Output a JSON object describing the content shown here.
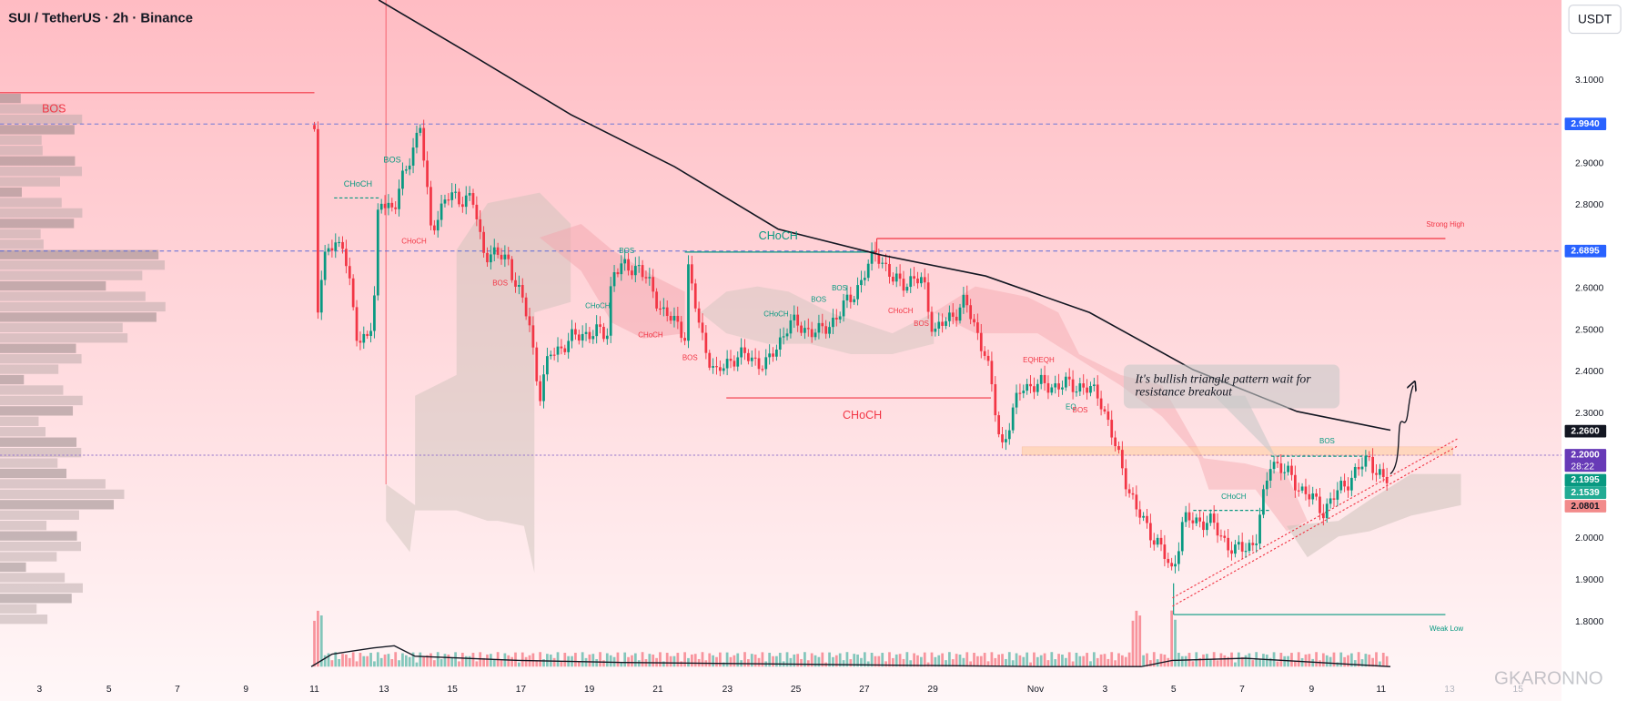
{
  "header": {
    "title": "SUI / TetherUS · 2h · Binance",
    "currency": "USDT"
  },
  "price_axis": [
    "3.1000",
    "2.9000",
    "2.8000",
    "2.6000",
    "2.5000",
    "2.4000",
    "2.3000",
    "2.0000",
    "1.9000",
    "1.8000"
  ],
  "price_badges": [
    "2.9940",
    "2.6895",
    "2.2600",
    "2.2000",
    "2.1995",
    "2.1539",
    "2.0801"
  ],
  "countdown": "28:22",
  "time_axis": [
    "3",
    "5",
    "7",
    "9",
    "11",
    "13",
    "15",
    "17",
    "19",
    "21",
    "23",
    "25",
    "27",
    "29",
    "Nov",
    "3",
    "5",
    "7",
    "9",
    "11",
    "13",
    "15"
  ],
  "labels": [
    "BOS",
    "CHoCH",
    "BOS",
    "CHoCH",
    "BOS",
    "BOS",
    "CHoCH",
    "CHoCH",
    "BOS",
    "CHoCH",
    "CHoCH",
    "BOS",
    "BOS",
    "CHoCH",
    "BOS",
    "CHoCH",
    "Strong High",
    "EQHEQH",
    "EQ",
    "BOS",
    "CHoCH",
    "BOS",
    "Weak Low"
  ],
  "note": [
    "It's bullish triangle pattern wait for",
    "resistance breakout"
  ],
  "watermark": "GKARONNO"
}
